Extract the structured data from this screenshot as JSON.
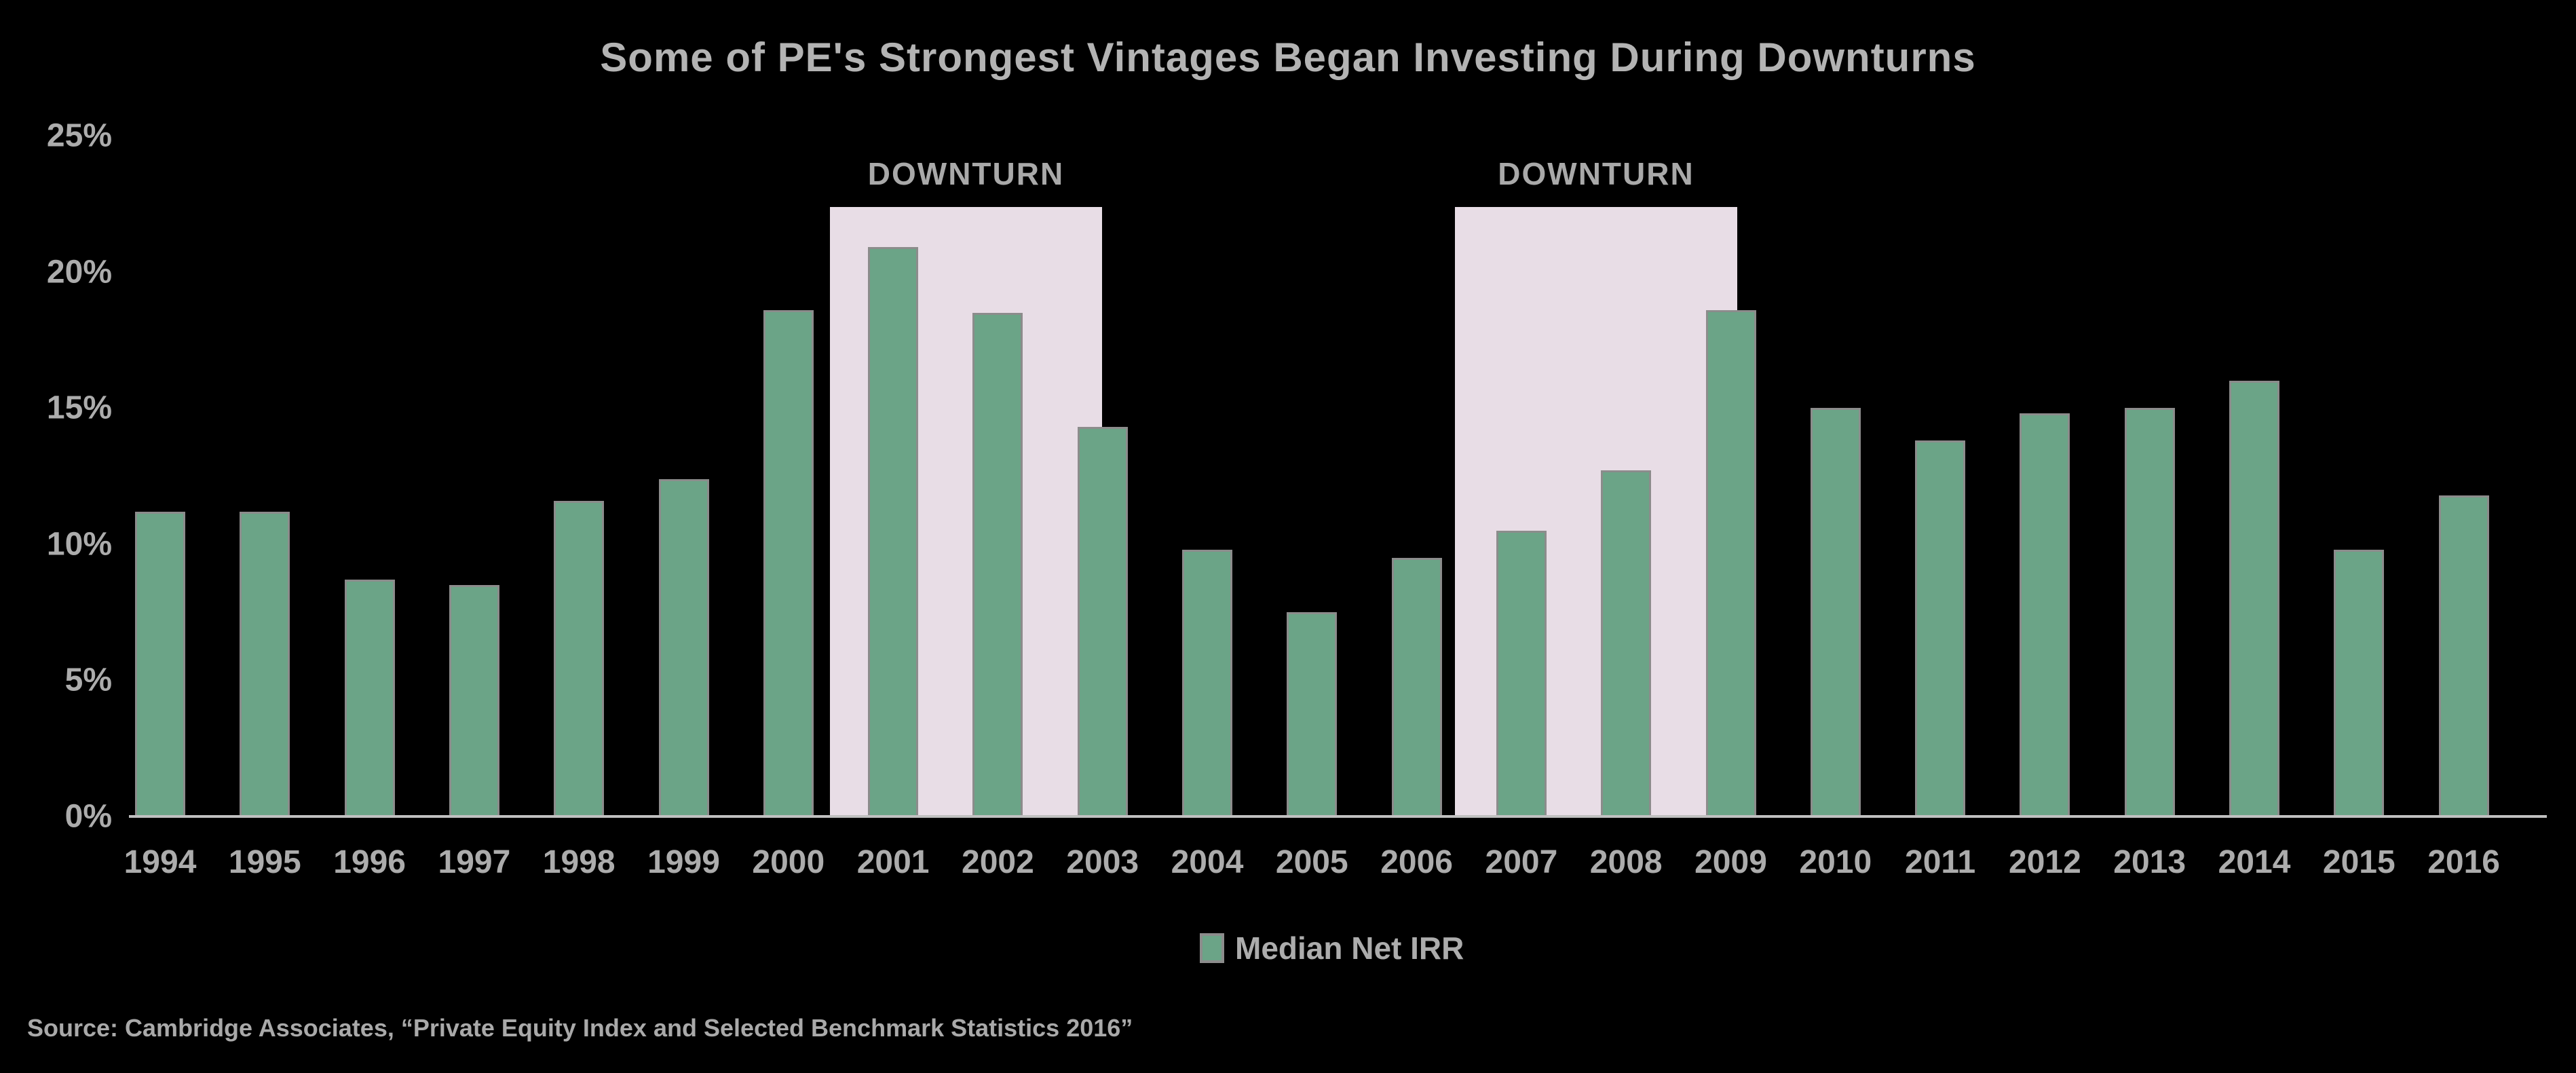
{
  "title": "Some of PE's Strongest Vintages Began Investing During Downturns",
  "legend": {
    "label": "Median Net IRR",
    "swatch_color": "#6ba487"
  },
  "source": "Source: Cambridge Associates, “Private Equity Index and Selected Benchmark Statistics 2016”",
  "colors": {
    "background": "#000000",
    "bar_fill": "#6ba487",
    "bar_edge": "#8c8c8c",
    "downturn_band": "#e8dde6",
    "text": "#acacac",
    "baseline": "#c0c0c0"
  },
  "chart_data": {
    "type": "bar",
    "title": "Some of PE's Strongest Vintages Began Investing During Downturns",
    "categories": [
      "1994",
      "1995",
      "1996",
      "1997",
      "1998",
      "1999",
      "2000",
      "2001",
      "2002",
      "2003",
      "2004",
      "2005",
      "2006",
      "2007",
      "2008",
      "2009",
      "2010",
      "2011",
      "2012",
      "2013",
      "2014",
      "2015",
      "2016"
    ],
    "series": [
      {
        "name": "Median Net IRR",
        "values": [
          11.2,
          11.2,
          8.7,
          8.5,
          11.6,
          12.4,
          18.6,
          20.9,
          18.5,
          14.3,
          9.8,
          7.5,
          9.5,
          10.5,
          12.7,
          18.6,
          15.0,
          13.8,
          14.8,
          15.0,
          16.0,
          9.8,
          11.8
        ]
      }
    ],
    "xlabel": "",
    "ylabel": "",
    "ylim": [
      0,
      25
    ],
    "ytick_labels": [
      "0%",
      "5%",
      "10%",
      "15%",
      "20%",
      "25%"
    ],
    "grid": false,
    "legend_position": "bottom",
    "annotations": [
      {
        "label": "DOWNTURN",
        "covers_vintages": "2001–2003"
      },
      {
        "label": "DOWNTURN",
        "covers_vintages": "2007–2009"
      }
    ]
  }
}
